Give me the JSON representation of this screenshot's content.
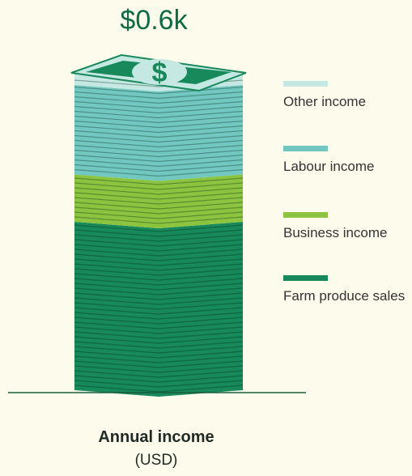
{
  "chart_data": {
    "type": "stacked_bar",
    "title": "$0.6k",
    "xlabel": "Annual income",
    "xlabel_sub": "(USD)",
    "categories": [
      "Annual income"
    ],
    "series": [
      {
        "name": "Farm produce sales",
        "color": "#17895a",
        "values": [
          320
        ]
      },
      {
        "name": "Business income",
        "color": "#8cc43f",
        "values": [
          90
        ]
      },
      {
        "name": "Labour income",
        "color": "#72c8c1",
        "values": [
          170
        ]
      },
      {
        "name": "Other income",
        "color": "#c5e8e2",
        "values": [
          20
        ]
      }
    ]
  }
}
